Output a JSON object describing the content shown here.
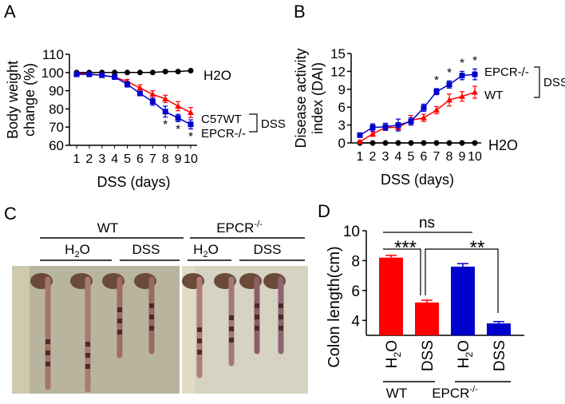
{
  "chart_data": [
    {
      "panel": "A",
      "type": "line",
      "ylabel_line1": "Body weight",
      "ylabel_line2": "change (%)",
      "xlabel": "DSS (days)",
      "x": [
        1,
        2,
        3,
        4,
        5,
        6,
        7,
        8,
        9,
        10
      ],
      "ylim": [
        60,
        110
      ],
      "yticks": [
        60,
        70,
        80,
        90,
        100,
        110
      ],
      "series": [
        {
          "name": "H2O",
          "color": "#000000",
          "values": [
            100,
            100,
            100,
            100,
            100,
            100,
            100,
            100.5,
            100.5,
            101
          ],
          "err": [
            0.3,
            0.3,
            0.3,
            0.3,
            0.3,
            0.3,
            0.3,
            0.6,
            0.5,
            0.4
          ]
        },
        {
          "name": "C57WT",
          "color": "#ff0000",
          "values": [
            99.5,
            99.2,
            98.5,
            97.5,
            95,
            91.5,
            88,
            85.5,
            81.5,
            78
          ],
          "err": [
            0.5,
            0.5,
            0.6,
            0.8,
            1.2,
            1.8,
            2,
            2,
            2.5,
            2.8
          ]
        },
        {
          "name": "EPCR-/-",
          "color": "#0000cc",
          "values": [
            99,
            99,
            98.5,
            97.5,
            93.5,
            88.5,
            84,
            78.5,
            75,
            71.5
          ],
          "err": [
            0.5,
            0.5,
            0.6,
            0.8,
            1.5,
            1.2,
            2,
            3,
            2,
            2.5
          ]
        }
      ],
      "significance_marks": [
        "*",
        "*",
        "*"
      ],
      "significance_days": [
        8,
        9,
        10
      ],
      "legend": {
        "h2o": "H2O",
        "wt": "C57WT",
        "ko": "EPCR-/-",
        "group": "DSS"
      }
    },
    {
      "panel": "B",
      "type": "line",
      "ylabel_line1": "Disease activity",
      "ylabel_line2": "index (DAI)",
      "xlabel": "DSS (days)",
      "x": [
        1,
        2,
        3,
        4,
        5,
        6,
        7,
        8,
        9,
        10
      ],
      "ylim": [
        0,
        15
      ],
      "yticks": [
        0,
        3,
        6,
        9,
        12,
        15
      ],
      "series": [
        {
          "name": "H2O",
          "color": "#000000",
          "values": [
            0,
            0,
            0,
            0,
            0,
            0,
            0,
            0,
            0,
            0
          ],
          "err": [
            0,
            0,
            0,
            0,
            0,
            0,
            0,
            0,
            0,
            0
          ]
        },
        {
          "name": "WT",
          "color": "#ff0000",
          "values": [
            0.2,
            1.5,
            2.6,
            2.6,
            3.8,
            4.2,
            5.5,
            7.2,
            7.8,
            8.5
          ],
          "err": [
            0.2,
            0.4,
            0.4,
            0.4,
            0.8,
            0.6,
            0.6,
            1,
            0.8,
            1
          ]
        },
        {
          "name": "EPCR-/-",
          "color": "#0000cc",
          "values": [
            1.3,
            2.6,
            2.7,
            3.0,
            3.6,
            5.9,
            8.6,
            9.8,
            11.3,
            11.5
          ],
          "err": [
            0.2,
            0.6,
            0.6,
            1,
            0.6,
            0.6,
            0.5,
            0.6,
            0.7,
            0.9
          ]
        }
      ],
      "significance_marks": [
        "*",
        "*",
        "*",
        "*"
      ],
      "significance_days": [
        7,
        8,
        9,
        10
      ],
      "legend": {
        "h2o": "H2O",
        "wt": "WT",
        "ko": "EPCR-/-",
        "group": "DSS"
      }
    },
    {
      "panel": "D",
      "type": "bar",
      "ylabel": "Colon length(cm)",
      "categories": [
        "H2O",
        "DSS",
        "H2O",
        "DSS"
      ],
      "groups": [
        "WT",
        "EPCR-/-"
      ],
      "values": [
        8.2,
        5.2,
        7.6,
        3.8
      ],
      "err": [
        0.15,
        0.15,
        0.2,
        0.12
      ],
      "colors": [
        "#ff0000",
        "#ff0000",
        "#0000cc",
        "#0000cc"
      ],
      "ylim": [
        3,
        10
      ],
      "yticks": [
        4,
        6,
        8,
        10
      ],
      "annotations": [
        "***",
        "**",
        "ns"
      ]
    }
  ],
  "panels": {
    "a": "A",
    "b": "B",
    "c": "C",
    "d": "D"
  },
  "photo": {
    "group_wt": "WT",
    "group_ko": "EPCR",
    "ko_sup": "-/-",
    "h2o": "H",
    "h2o_sub": "2",
    "h2o_end": "O",
    "dss": "DSS"
  }
}
